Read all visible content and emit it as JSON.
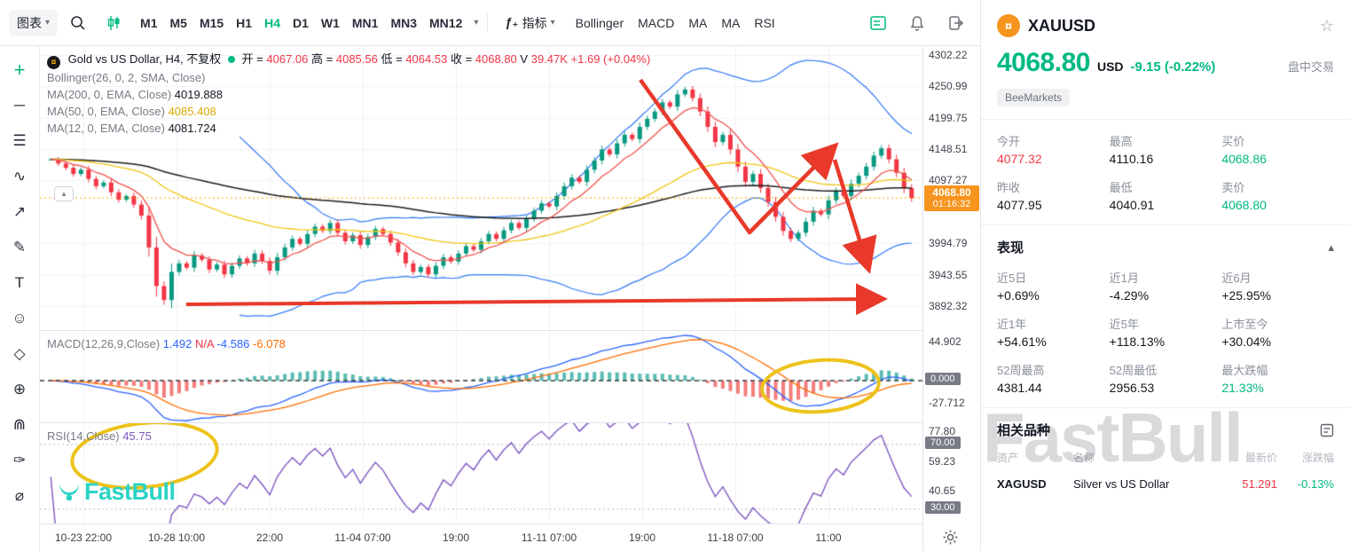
{
  "toolbar": {
    "chart_menu": "图表",
    "timeframes": [
      "M1",
      "M5",
      "M15",
      "H1",
      "H4",
      "D1",
      "W1",
      "MN1",
      "MN3",
      "MN12"
    ],
    "active_timeframe": "H4",
    "indicators_label": "指标",
    "fx_glyph": "ƒ₊",
    "indicator_shortcuts": [
      "Bollinger",
      "MACD",
      "MA",
      "MA",
      "RSI"
    ]
  },
  "tools": [
    {
      "name": "crosshair",
      "glyph": "+"
    },
    {
      "name": "trendline",
      "glyph": "─"
    },
    {
      "name": "channels",
      "glyph": "☰"
    },
    {
      "name": "patterns",
      "glyph": "∿"
    },
    {
      "name": "forecast",
      "glyph": "↗"
    },
    {
      "name": "brush",
      "glyph": "✎"
    },
    {
      "name": "text",
      "glyph": "T"
    },
    {
      "name": "emoji",
      "glyph": "☺"
    },
    {
      "name": "shapes",
      "glyph": "◇"
    },
    {
      "name": "zoom-in",
      "glyph": "⊕"
    },
    {
      "name": "magnet",
      "glyph": "⋒"
    },
    {
      "name": "highlighter",
      "glyph": "✑"
    },
    {
      "name": "eraser",
      "glyph": "⌀"
    }
  ],
  "legend": {
    "title": "Gold vs US Dollar, H4, 不复权",
    "open_label": "开",
    "open": "4067.06",
    "high_label": "高",
    "high": "4085.56",
    "low_label": "低",
    "low": "4064.53",
    "close_label": "收",
    "close": "4068.80",
    "volume_label": "V",
    "volume": "39.47K",
    "change": "+1.69 (+0.04%)",
    "bollinger": "Bollinger(26, 0, 2, SMA, Close)",
    "ma200_label": "MA(200, 0, EMA, Close)",
    "ma200": "4019.888",
    "ma50_label": "MA(50, 0, EMA, Close)",
    "ma50": "4085.408",
    "ma12_label": "MA(12, 0, EMA, Close)",
    "ma12": "4081.724"
  },
  "macd": {
    "label": "MACD(12,26,9,Close)",
    "v1": "1.492",
    "v2": "N/A",
    "v3": "-4.586",
    "v4": "-6.078",
    "axis": [
      "44.902",
      "0.000",
      "-27.712"
    ]
  },
  "rsi": {
    "label": "RSI(14,Close)",
    "value": "45.75",
    "axis": [
      "77.80",
      "70.00",
      "59.23",
      "40.65",
      "30.00"
    ]
  },
  "price_axis": {
    "labels": [
      "4302.22",
      "4250.99",
      "4199.75",
      "4148.51",
      "4097.27",
      "3994.79",
      "3943.55",
      "3892.32"
    ],
    "last_price": "4068.80",
    "countdown": "01:16:32"
  },
  "time_axis": [
    "10-23 22:00",
    "10-28 10:00",
    "22:00",
    "11-04 07:00",
    "19:00",
    "11-11 07:00",
    "19:00",
    "11-18 07:00",
    "11:00"
  ],
  "watermark": "FastBull",
  "chart_brand": "FastBull",
  "chart_data": {
    "type": "candlestick",
    "symbol": "XAUUSD",
    "interval": "H4",
    "last": 4068.8,
    "closes": [
      4132,
      4125,
      4118,
      4108,
      4115,
      4100,
      4088,
      4094,
      4078,
      4066,
      4072,
      4058,
      4040,
      3988,
      3925,
      3902,
      3948,
      3962,
      3955,
      3975,
      3968,
      3952,
      3960,
      3944,
      3958,
      3970,
      3962,
      3978,
      3966,
      3950,
      3972,
      3988,
      4002,
      3994,
      4010,
      4022,
      4015,
      4028,
      4012,
      3998,
      4008,
      3992,
      4005,
      4018,
      4010,
      3996,
      3980,
      3962,
      3948,
      3956,
      3944,
      3958,
      3972,
      3965,
      3978,
      3990,
      3984,
      3998,
      4010,
      4002,
      4016,
      4028,
      4020,
      4035,
      4048,
      4060,
      4055,
      4072,
      4088,
      4102,
      4095,
      4115,
      4130,
      4148,
      4140,
      4158,
      4172,
      4165,
      4185,
      4198,
      4210,
      4225,
      4218,
      4238,
      4246,
      4232,
      4210,
      4185,
      4160,
      4172,
      4148,
      4120,
      4095,
      4108,
      4085,
      4062,
      4038,
      4015,
      4002,
      4012,
      4030,
      4048,
      4042,
      4065,
      4080,
      4072,
      4092,
      4105,
      4120,
      4138,
      4150,
      4132,
      4110,
      4085,
      4068.8
    ],
    "colors": {
      "up": "#089981",
      "down": "#f23645",
      "bollinger": "#3179f5",
      "ma_long": "#1c1c1c",
      "ma_mid": "#f0c514",
      "ma_short": "#ef5350",
      "macd_line": "#2962ff",
      "macd_signal": "#ff6d00",
      "rsi_line": "#7e57c2",
      "annotation": "#e8392b",
      "highlight": "#edc31b",
      "last_price_line": "#f7a600"
    }
  },
  "panel": {
    "symbol": "XAUUSD",
    "price": "4068.80",
    "currency": "USD",
    "change": "-9.15  (-0.22%)",
    "session": "盘中交易",
    "broker": "BeeMarkets",
    "stats": [
      {
        "label": "今开",
        "value": "4077.32",
        "color": "red"
      },
      {
        "label": "最高",
        "value": "4110.16",
        "color": ""
      },
      {
        "label": "买价",
        "value": "4068.86",
        "color": "green"
      },
      {
        "label": "昨收",
        "value": "4077.95",
        "color": ""
      },
      {
        "label": "最低",
        "value": "4040.91",
        "color": ""
      },
      {
        "label": "卖价",
        "value": "4068.80",
        "color": "green"
      }
    ],
    "performance_title": "表现",
    "performance": [
      {
        "label": "近5日",
        "value": "+0.69%",
        "color": ""
      },
      {
        "label": "近1月",
        "value": "-4.29%",
        "color": ""
      },
      {
        "label": "近6月",
        "value": "+25.95%",
        "color": ""
      },
      {
        "label": "近1年",
        "value": "+54.61%",
        "color": ""
      },
      {
        "label": "近5年",
        "value": "+118.13%",
        "color": ""
      },
      {
        "label": "上市至今",
        "value": "+30.04%",
        "color": ""
      },
      {
        "label": "52周最高",
        "value": "4381.44",
        "color": ""
      },
      {
        "label": "52周最低",
        "value": "2956.53",
        "color": ""
      },
      {
        "label": "最大跌幅",
        "value": "21.33%",
        "color": "green"
      }
    ],
    "related_title": "相关品种",
    "related_headers": [
      "资产",
      "名称",
      "最新价",
      "涨跌幅"
    ],
    "related_rows": [
      {
        "asset": "XAGUSD",
        "name": "Silver vs US Dollar",
        "price": "51.291",
        "price_color": "red",
        "change": "-0.13%",
        "change_color": "green"
      }
    ]
  }
}
